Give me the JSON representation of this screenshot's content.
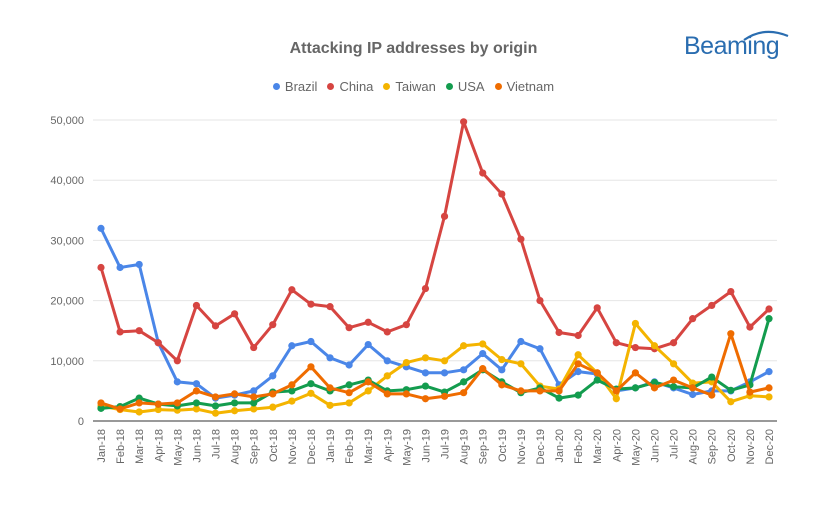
{
  "logo_text": "Beaming",
  "colors": {
    "Brazil": "#4a86e8",
    "China": "#d64541",
    "Taiwan": "#f4b400",
    "USA": "#139c4e",
    "Vietnam": "#ef6c00",
    "grid": "#e6e6e6",
    "axis": "#333333",
    "text": "#666666",
    "logo": "#2a6db0"
  },
  "chart_data": {
    "type": "line",
    "title": "Attacking IP addresses by origin",
    "legend_position": "top",
    "grid": true,
    "ylim": [
      0,
      50000
    ],
    "yticks": [
      "0",
      "10,000",
      "20,000",
      "30,000",
      "40,000",
      "50,000"
    ],
    "categories": [
      "Jan-18",
      "Feb-18",
      "Mar-18",
      "Apr-18",
      "May-18",
      "Jun-18",
      "Jul-18",
      "Aug-18",
      "Sep-18",
      "Oct-18",
      "Nov-18",
      "Dec-18",
      "Jan-19",
      "Feb-19",
      "Mar-19",
      "Apr-19",
      "May-19",
      "Jun-19",
      "Jul-19",
      "Aug-19",
      "Sep-19",
      "Oct-19",
      "Nov-19",
      "Dec-19",
      "Jan-20",
      "Feb-20",
      "Mar-20",
      "Apr-20",
      "May-20",
      "Jun-20",
      "Jul-20",
      "Aug-20",
      "Sep-20",
      "Oct-20",
      "Nov-20",
      "Dec-20"
    ],
    "series": [
      {
        "name": "Brazil",
        "values": [
          32000,
          25500,
          26000,
          13000,
          6500,
          6200,
          3800,
          4300,
          5000,
          7500,
          12500,
          13200,
          10500,
          9300,
          12700,
          10000,
          9000,
          8000,
          8000,
          8500,
          11200,
          8500,
          13200,
          12000,
          6000,
          8200,
          7800,
          5000,
          5500,
          6500,
          5500,
          4400,
          5000,
          5000,
          6500,
          8200
        ]
      },
      {
        "name": "China",
        "values": [
          25500,
          14800,
          15000,
          13000,
          10000,
          19200,
          15800,
          17800,
          12200,
          16000,
          21800,
          19400,
          19000,
          15500,
          16400,
          14800,
          16000,
          22000,
          34000,
          49700,
          41200,
          37700,
          30200,
          20000,
          14700,
          14200,
          18800,
          13000,
          12200,
          12000,
          13000,
          17000,
          19200,
          21500,
          15600,
          18600
        ]
      },
      {
        "name": "Taiwan",
        "values": [
          2500,
          1900,
          1500,
          1900,
          1800,
          2000,
          1300,
          1700,
          2000,
          2300,
          3300,
          4600,
          2600,
          3000,
          5000,
          7500,
          9700,
          10500,
          10000,
          12500,
          12800,
          10200,
          9500,
          5800,
          5300,
          11000,
          8000,
          3700,
          16200,
          12500,
          9500,
          6300,
          6500,
          3200,
          4200,
          4000
        ]
      },
      {
        "name": "USA",
        "values": [
          2100,
          2400,
          3800,
          2800,
          2500,
          3000,
          2500,
          3000,
          3000,
          4800,
          5000,
          6200,
          5000,
          6000,
          6800,
          5000,
          5200,
          5800,
          4800,
          6500,
          8500,
          6500,
          4700,
          5500,
          3800,
          4300,
          6800,
          5300,
          5500,
          6400,
          5700,
          5500,
          7300,
          5100,
          6000,
          17000
        ]
      },
      {
        "name": "Vietnam",
        "values": [
          3000,
          2000,
          3000,
          2800,
          3000,
          5000,
          4000,
          4500,
          4000,
          4500,
          6000,
          9000,
          5500,
          4700,
          6500,
          4500,
          4500,
          3700,
          4100,
          4700,
          8700,
          6000,
          5000,
          5000,
          5000,
          9500,
          8000,
          5000,
          8000,
          5500,
          6800,
          5500,
          4300,
          14500,
          4800,
          5500
        ]
      }
    ]
  }
}
